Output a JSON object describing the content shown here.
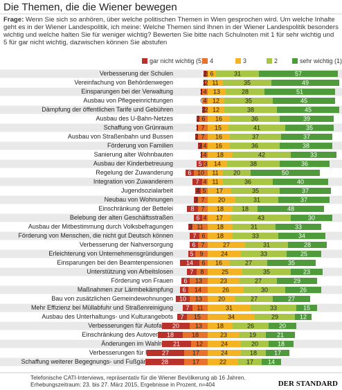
{
  "chart_data": {
    "type": "diverging-bar",
    "title": "Die Themen, die die Wiener bewegen",
    "question_label": "Frage:",
    "question": "Wenn Sie sich so anhören, über welche politischen Themen in Wien gesprochen wird. Um welche Inhalte geht es in der Wiener Landespolitik, ich meine: Welche Themen sind Ihnen in der Wiener Landespolitik besonders wichtig und welche halten Sie für weniger wichtig? Bewerten Sie bitte nach Schulnoten mit 1 für sehr wichtig und 5 für gar nicht wichtig, dazwischen können Sie abstufen",
    "categories": [
      "Verbesserung der Schulen",
      "Vereinfachung von Behördenwegen",
      "Einsparungen bei der Verwaltung",
      "Ausbau von Pflegeeinrichtungen",
      "Dämpfung der öffentlichen Tarife und Gebühren",
      "Ausbau des U-Bahn-Netzes",
      "Schaffung von Grünraum",
      "Ausbau von Straßenbahn und Bussen",
      "Förderung von Familien",
      "Sanierung alter Wohnbauten",
      "Ausbau der Kinderbetreuung",
      "Regelung der Zuwanderung",
      "Integration von Zuwanderern",
      "Jugendsozialarbeit",
      "Neubau von Wohnungen",
      "Einschränkung der Bettelei",
      "Belebung der alten Geschäftsstraßen",
      "Ausbau der Mitbestimmung durch Volksbefragungen",
      "Förderung von Menschen, die nicht gut Deutsch können",
      "Verbesserung der Nahversorgung",
      "Erleichterung von Unternehmensgründungen",
      "Einsparungen bei den Beamtenpensionen",
      "Unterstützung von Arbeitslosen",
      "Förderung von Frauen",
      "Maßnahmen zur Lärmbekämpfung",
      "Bau von zusätzlichen Gemeindewohnungen",
      "Mehr Effizienz bei Müllabfuhr und Straßenreinigung",
      "Ausbau des Unterhaltungs- und Kulturangebots",
      "Verbesserungen für Autofahrer",
      "Einschränkung des Autoverkehrs",
      "Änderungen im Wahlrecht",
      "Verbesserungen für Radfahrer",
      "Schaffung weiterer Begegnungs- und Fußgängerzonen"
    ],
    "series": [
      {
        "name": "gar nicht wichtig (5)",
        "color": "#b8312b",
        "values": [
          2,
          1,
          1,
          0,
          2,
          2,
          1,
          2,
          3,
          1,
          5,
          6,
          7,
          4,
          3,
          8,
          6,
          3,
          7,
          6,
          5,
          14,
          7,
          6,
          6,
          10,
          7,
          7,
          20,
          18,
          21,
          27,
          28
        ]
      },
      {
        "name": "4",
        "color": "#e8722c",
        "values": [
          1,
          2,
          4,
          4,
          2,
          6,
          7,
          7,
          4,
          4,
          3,
          10,
          4,
          5,
          7,
          7,
          4,
          11,
          6,
          7,
          9,
          6,
          8,
          13,
          14,
          13,
          11,
          15,
          13,
          18,
          12,
          17,
          17
        ]
      },
      {
        "name": "3",
        "color": "#f3b323",
        "values": [
          6,
          11,
          13,
          12,
          12,
          16,
          15,
          16,
          16,
          18,
          14,
          11,
          11,
          17,
          20,
          18,
          17,
          18,
          18,
          27,
          24,
          16,
          25,
          23,
          26,
          20,
          31,
          34,
          18,
          23,
          24,
          24,
          22
        ]
      },
      {
        "name": "2",
        "color": "#a9c545",
        "values": [
          31,
          35,
          28,
          35,
          38,
          36,
          41,
          37,
          36,
          42,
          38,
          20,
          36,
          35,
          31,
          18,
          43,
          31,
          33,
          31,
          33,
          27,
          35,
          27,
          30,
          27,
          33,
          29,
          26,
          19,
          20,
          18,
          17
        ]
      },
      {
        "name": "sehr wichtig (1)",
        "color": "#4f9a3b",
        "values": [
          57,
          49,
          51,
          45,
          45,
          39,
          35,
          37,
          38,
          33,
          36,
          50,
          40,
          37,
          37,
          48,
          30,
          33,
          34,
          28,
          25,
          35,
          23,
          29,
          26,
          27,
          15,
          12,
          20,
          21,
          18,
          17,
          14
        ]
      }
    ],
    "source": "Telefonische CATI-Interviews, repräsentativ für die Wiener Bevölkerung ab 16 Jahren. Erhebungszeitraum: 23. bis 27. März 2015, Ergebnisse in Prozent, n=404",
    "brand": "DER STANDARD"
  }
}
